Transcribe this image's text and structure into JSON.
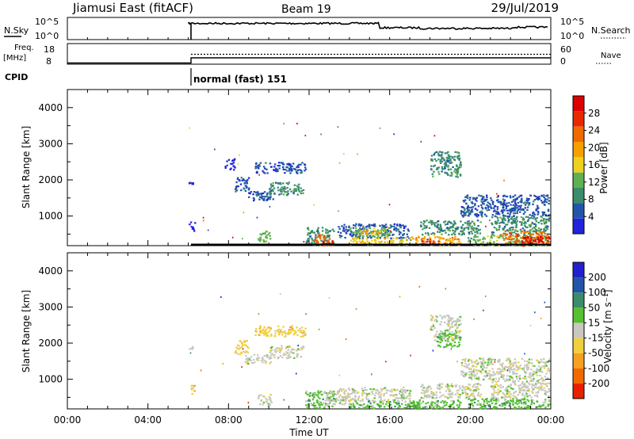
{
  "header": {
    "title": "Jiamusi East (fitACF)",
    "beam": "Beam 19",
    "date": "29/Jul/2019"
  },
  "top_panels": {
    "nsky_label": "N.Sky",
    "nsky_ticks": [
      "10^5",
      "10^0"
    ],
    "nsearch_label": "N.Search",
    "nsearch_ticks": [
      "10^5",
      "10^0"
    ],
    "freq_label_1": "Freq.",
    "freq_label_2": "[MHz]",
    "freq_ticks": [
      "18",
      "8"
    ],
    "nave_label": "Nave",
    "nave_ticks": [
      "60",
      "0"
    ],
    "cpid_label": "CPID",
    "cpid_value": "normal (fast) 151"
  },
  "colors": {
    "power_scale": [
      "#2222dd",
      "#2255aa",
      "#3a8c6a",
      "#5fb050",
      "#eed020",
      "#f5a000",
      "#f06a00",
      "#e82800",
      "#dd0000"
    ],
    "velocity_scale": [
      "#2222cc",
      "#2255aa",
      "#3a8c6a",
      "#55c030",
      "#c8c8c0",
      "#f0d040",
      "#f5a020",
      "#f06a00",
      "#e82000"
    ],
    "ground_scatter": "#c8c8c0"
  },
  "chart_data": [
    {
      "type": "heatmap",
      "name": "power",
      "ylabel": "Slant Range [km]",
      "yticks": [
        "1000",
        "2000",
        "3000",
        "4000"
      ],
      "ylim": [
        180,
        4500
      ],
      "colorbar_label": "Power [dB]",
      "colorbar_ticks": [
        "4",
        "8",
        "12",
        "16",
        "20",
        "24",
        "28"
      ],
      "regions": [
        {
          "t0": 6.0,
          "t1": 6.2,
          "r0": 1850,
          "r1": 1950,
          "level": 0
        },
        {
          "t0": 6.0,
          "t1": 6.3,
          "r0": 600,
          "r1": 850,
          "level": 0
        },
        {
          "t0": 7.8,
          "t1": 8.3,
          "r0": 2300,
          "r1": 2600,
          "level": 0
        },
        {
          "t0": 8.3,
          "t1": 9.0,
          "r0": 1700,
          "r1": 2100,
          "level": 1
        },
        {
          "t0": 8.8,
          "t1": 10.2,
          "r0": 1450,
          "r1": 1700,
          "level": 1
        },
        {
          "t0": 9.3,
          "t1": 11.8,
          "r0": 2200,
          "r1": 2500,
          "level": 1
        },
        {
          "t0": 10.0,
          "t1": 11.7,
          "r0": 1600,
          "r1": 1950,
          "level": 2
        },
        {
          "t0": 9.4,
          "t1": 10.1,
          "r0": 300,
          "r1": 600,
          "level": 3
        },
        {
          "t0": 11.8,
          "t1": 13.2,
          "r0": 200,
          "r1": 700,
          "level": 2
        },
        {
          "t0": 12.2,
          "t1": 13.0,
          "r0": 200,
          "r1": 500,
          "level": 6
        },
        {
          "t0": 12.6,
          "t1": 13.2,
          "r0": 200,
          "r1": 350,
          "level": 8
        },
        {
          "t0": 13.4,
          "t1": 17.0,
          "r0": 400,
          "r1": 800,
          "level": 1
        },
        {
          "t0": 14.0,
          "t1": 16.0,
          "r0": 450,
          "r1": 700,
          "level": 3
        },
        {
          "t0": 14.5,
          "t1": 15.5,
          "r0": 500,
          "r1": 650,
          "level": 5
        },
        {
          "t0": 14.0,
          "t1": 17.0,
          "r0": 220,
          "r1": 420,
          "level": 4
        },
        {
          "t0": 17.0,
          "t1": 19.5,
          "r0": 200,
          "r1": 450,
          "level": 5
        },
        {
          "t0": 17.5,
          "t1": 18.5,
          "r0": 230,
          "r1": 380,
          "level": 7
        },
        {
          "t0": 18.0,
          "t1": 19.5,
          "r0": 2100,
          "r1": 2800,
          "level": 2
        },
        {
          "t0": 19.5,
          "t1": 23.9,
          "r0": 1000,
          "r1": 1600,
          "level": 1
        },
        {
          "t0": 17.5,
          "t1": 20.5,
          "r0": 500,
          "r1": 900,
          "level": 2
        },
        {
          "t0": 19.8,
          "t1": 23.9,
          "r0": 200,
          "r1": 500,
          "level": 3
        },
        {
          "t0": 21.0,
          "t1": 23.9,
          "r0": 500,
          "r1": 1000,
          "level": 2
        },
        {
          "t0": 21.5,
          "t1": 23.9,
          "r0": 250,
          "r1": 600,
          "level": 6
        },
        {
          "t0": 22.5,
          "t1": 23.9,
          "r0": 200,
          "r1": 450,
          "level": 8
        }
      ]
    },
    {
      "type": "heatmap",
      "name": "velocity",
      "ylabel": "Slant Range [km]",
      "yticks": [
        "1000",
        "2000",
        "3000",
        "4000"
      ],
      "ylim": [
        180,
        4500
      ],
      "xticks": [
        "00:00",
        "04:00",
        "08:00",
        "12:00",
        "16:00",
        "20:00",
        "00:00"
      ],
      "xlabel": "Time UT",
      "colorbar_label": "Velocity [m s⁻¹]",
      "colorbar_ticks": [
        "200",
        "100",
        "50",
        "15",
        "-15",
        "-50",
        "-100",
        "-200"
      ],
      "regions": [
        {
          "t0": 6.0,
          "t1": 6.2,
          "r0": 1850,
          "r1": 1950,
          "level": 4
        },
        {
          "t0": 6.0,
          "t1": 6.3,
          "r0": 600,
          "r1": 850,
          "level": 5
        },
        {
          "t0": 8.3,
          "t1": 9.0,
          "r0": 1700,
          "r1": 2100,
          "level": 5
        },
        {
          "t0": 8.8,
          "t1": 10.2,
          "r0": 1450,
          "r1": 1700,
          "level": 4
        },
        {
          "t0": 9.3,
          "t1": 11.8,
          "r0": 2200,
          "r1": 2500,
          "level": 5
        },
        {
          "t0": 10.0,
          "t1": 11.7,
          "r0": 1600,
          "r1": 1950,
          "level": 4
        },
        {
          "t0": 9.4,
          "t1": 10.1,
          "r0": 300,
          "r1": 600,
          "level": 4
        },
        {
          "t0": 11.8,
          "t1": 13.2,
          "r0": 200,
          "r1": 700,
          "level": 3
        },
        {
          "t0": 12.8,
          "t1": 14.0,
          "r0": 300,
          "r1": 700,
          "level": 4
        },
        {
          "t0": 13.4,
          "t1": 17.0,
          "r0": 400,
          "r1": 800,
          "level": 4
        },
        {
          "t0": 14.0,
          "t1": 17.5,
          "r0": 220,
          "r1": 420,
          "level": 3
        },
        {
          "t0": 17.0,
          "t1": 19.5,
          "r0": 200,
          "r1": 450,
          "level": 3
        },
        {
          "t0": 18.0,
          "t1": 19.5,
          "r0": 2100,
          "r1": 2800,
          "level": 4
        },
        {
          "t0": 18.3,
          "t1": 19.5,
          "r0": 1900,
          "r1": 2300,
          "level": 3
        },
        {
          "t0": 19.5,
          "t1": 23.9,
          "r0": 1000,
          "r1": 1600,
          "level": 4
        },
        {
          "t0": 17.5,
          "t1": 20.5,
          "r0": 500,
          "r1": 900,
          "level": 4
        },
        {
          "t0": 19.8,
          "t1": 23.9,
          "r0": 200,
          "r1": 500,
          "level": 3
        },
        {
          "t0": 21.0,
          "t1": 23.9,
          "r0": 500,
          "r1": 1000,
          "level": 4
        }
      ]
    }
  ]
}
